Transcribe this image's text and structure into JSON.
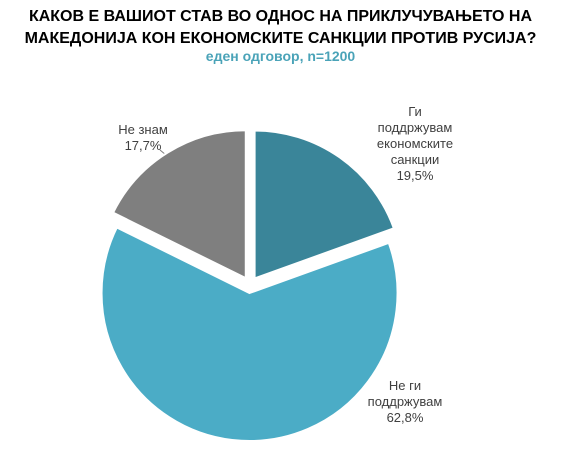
{
  "chart_data": {
    "type": "pie",
    "title": "КАКОВ Е ВАШИОТ СТАВ ВО ОДНОС НА ПРИКЛУЧУВАЊЕТО НА\nМАКЕДОНИЈА КОН ЕКОНОМСКИТЕ САНКЦИИ ПРОТИВ РУСИЈА?",
    "subtitle": "еден одговор, n=1200",
    "categories": [
      "Ги\nподдржувам\nекономските\nсанкции",
      "Не ги\nподдржувам",
      "Не знам"
    ],
    "values": [
      19.5,
      62.8,
      17.7
    ],
    "value_labels": [
      "19,5%",
      "62,8%",
      "17,7%"
    ],
    "colors": [
      "#3a8599",
      "#4bacc6",
      "#7f7f7f"
    ]
  }
}
